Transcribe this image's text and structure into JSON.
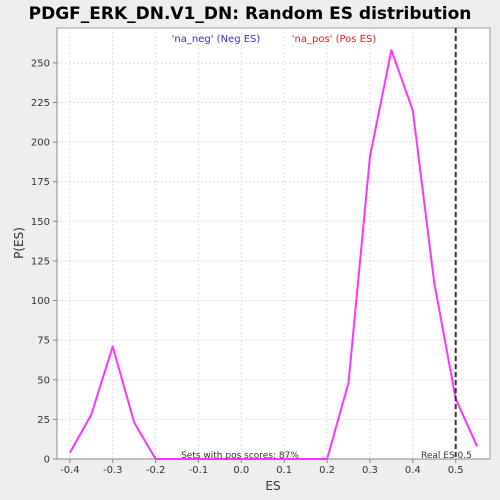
{
  "chart_data": {
    "type": "line",
    "title": "PDGF_ERK_DN.V1_DN: Random ES distribution",
    "xlabel": "ES",
    "ylabel": "P(ES)",
    "xlim": [
      -0.43,
      0.58
    ],
    "ylim": [
      0,
      272
    ],
    "x_ticks": [
      -0.4,
      -0.3,
      -0.2,
      -0.1,
      0.0,
      0.1,
      0.2,
      0.3,
      0.4,
      0.5
    ],
    "x_tick_labels": [
      "-0.4",
      "-0.3",
      "-0.2",
      "-0.1",
      "0.0",
      "0.1",
      "0.2",
      "0.3",
      "0.4",
      "0.5"
    ],
    "y_ticks": [
      0,
      25,
      50,
      75,
      100,
      125,
      150,
      175,
      200,
      225,
      250
    ],
    "y_tick_labels": [
      "0",
      "25",
      "50",
      "75",
      "100",
      "125",
      "150",
      "175",
      "200",
      "225",
      "250"
    ],
    "grid": true,
    "legend": [
      {
        "label": "'na_neg' (Neg ES)",
        "color": "#3333cc"
      },
      {
        "label": "'na_pos' (Pos ES)",
        "color": "#dd2222"
      }
    ],
    "legend_position": "top-center",
    "series": [
      {
        "color": "#ff33ff",
        "x": [
          -0.4,
          -0.35,
          -0.3,
          -0.25,
          -0.2,
          -0.15,
          -0.1,
          -0.05,
          0.0,
          0.05,
          0.1,
          0.15,
          0.2,
          0.25,
          0.3,
          0.35,
          0.4,
          0.45,
          0.5,
          0.55
        ],
        "y": [
          4,
          28,
          71,
          23,
          0,
          0,
          0,
          0,
          0,
          0,
          0,
          0,
          0,
          48,
          191,
          258,
          220,
          111,
          38,
          8
        ]
      }
    ],
    "reference_line": {
      "x": 0.5,
      "style": "dashed",
      "color": "#333333"
    },
    "annotations": {
      "sets_pos": "Sets with pos scores: 87%",
      "real_es": "Real ES 0.5"
    }
  }
}
